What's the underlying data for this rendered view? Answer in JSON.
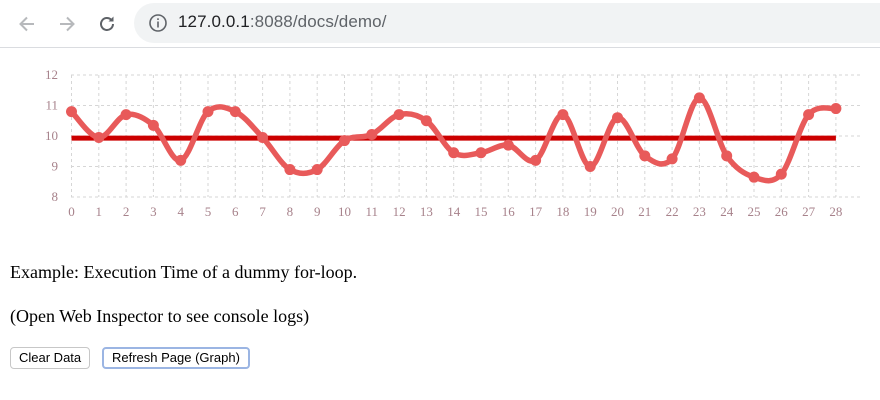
{
  "browser": {
    "url_host": "127.0.0.1",
    "url_rest": ":8088/docs/demo/",
    "back_icon": "arrow-left-icon",
    "forward_icon": "arrow-right-icon",
    "reload_icon": "reload-icon",
    "info_icon": "info-icon"
  },
  "chart_data": {
    "type": "line",
    "x": [
      0,
      1,
      2,
      3,
      4,
      5,
      6,
      7,
      8,
      9,
      10,
      11,
      12,
      13,
      14,
      15,
      16,
      17,
      18,
      19,
      20,
      21,
      22,
      23,
      24,
      25,
      26,
      27,
      28
    ],
    "x_tick_labels": [
      "0",
      "1",
      "2",
      "3",
      "4",
      "5",
      "6",
      "7",
      "8",
      "9",
      "10",
      "11",
      "12",
      "13",
      "14",
      "15",
      "16",
      "17",
      "18",
      "19",
      "20",
      "21",
      "22",
      "23",
      "24",
      "25",
      "26",
      "27",
      "28"
    ],
    "y_tick_labels": [
      "8",
      "9",
      "10",
      "11",
      "12"
    ],
    "ylim": [
      7.8,
      12
    ],
    "grid": true,
    "colors": {
      "series": "#e85a5a",
      "mean": "#cc0000",
      "grid": "#d6d6d6",
      "ticks": "#a7828b"
    },
    "series": [
      {
        "values": [
          10.8,
          9.95,
          10.7,
          10.35,
          9.2,
          10.8,
          10.8,
          9.95,
          8.9,
          8.9,
          9.85,
          10.05,
          10.7,
          10.5,
          9.45,
          9.45,
          9.7,
          9.2,
          10.7,
          9.0,
          10.6,
          9.35,
          9.25,
          11.25,
          9.35,
          8.65,
          8.75,
          10.7,
          10.9
        ]
      },
      {
        "values_constant": 9.93
      }
    ]
  },
  "page": {
    "caption1": "Example: Execution Time of a dummy for-loop.",
    "caption2": "(Open Web Inspector to see console logs)",
    "clear_button": "Clear Data",
    "refresh_button": "Refresh Page (Graph)"
  }
}
